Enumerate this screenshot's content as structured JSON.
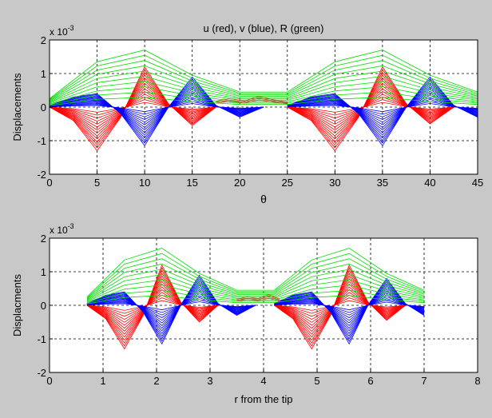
{
  "chart_data": [
    {
      "type": "line",
      "title": "u (red), v (blue), R (green)",
      "xlabel": "θ",
      "ylabel": "Displacements",
      "multiplier_label": "x 10",
      "multiplier_exp": "-3",
      "xlim": [
        0,
        45
      ],
      "ylim": [
        -2,
        2
      ],
      "xticks": [
        "0",
        "5",
        "10",
        "15",
        "20",
        "25",
        "30",
        "35",
        "40",
        "45"
      ],
      "yticks": [
        "-2",
        "-1",
        "0",
        "1",
        "2"
      ],
      "xtick_values": [
        0,
        5,
        10,
        15,
        20,
        25,
        30,
        35,
        40,
        45
      ],
      "ytick_values": [
        -2,
        -1,
        0,
        1,
        2
      ],
      "grid": true,
      "series": [
        {
          "color": "#ff0000",
          "x": [
            0,
            2.5,
            5,
            7.5,
            10,
            12.5,
            15,
            17.5
          ],
          "y": [
            0,
            -0.4,
            -1.3,
            -0.3,
            1.2,
            0.1,
            -0.55,
            0
          ],
          "layers": 14,
          "min_scale": 0.05
        },
        {
          "color": "#ff0000",
          "x": [
            25,
            27.5,
            30,
            32.5,
            35,
            37.5,
            40,
            42.5
          ],
          "y": [
            0,
            -0.4,
            -1.3,
            -0.3,
            1.2,
            0.1,
            -0.5,
            0
          ],
          "layers": 14,
          "min_scale": 0.05
        },
        {
          "color": "#0000ff",
          "x": [
            0,
            2.5,
            5,
            7.5,
            10,
            12.5,
            15,
            17.5,
            20,
            22.5
          ],
          "y": [
            0.05,
            0.3,
            0.4,
            -0.2,
            -1.15,
            0,
            0.9,
            0.05,
            -0.3,
            0
          ],
          "layers": 14,
          "min_scale": 0.05
        },
        {
          "color": "#0000ff",
          "x": [
            25,
            27.5,
            30,
            32.5,
            35,
            37.5,
            40,
            42.5,
            45
          ],
          "y": [
            0.05,
            0.3,
            0.4,
            -0.2,
            -1.15,
            0,
            0.9,
            0.05,
            -0.3
          ],
          "layers": 14,
          "min_scale": 0.05
        },
        {
          "color": "#00dd00",
          "x": [
            0,
            5,
            10,
            15,
            20,
            25,
            30,
            35,
            40,
            45
          ],
          "y": [
            0.25,
            1.35,
            1.7,
            0.95,
            0.45,
            0.45,
            1.35,
            1.7,
            0.95,
            0.45
          ],
          "layers": 10,
          "min_scale": 0.08
        },
        {
          "color": "#b05010",
          "x": [
            17.5,
            19,
            20.5,
            22,
            23.5,
            25
          ],
          "y": [
            0.18,
            0.25,
            0.18,
            0.32,
            0.22,
            0.15
          ],
          "layers": 3,
          "min_scale": 0.5
        }
      ]
    },
    {
      "type": "line",
      "title": "",
      "xlabel": "r from the tip",
      "ylabel": "Displacments",
      "multiplier_label": "x 10",
      "multiplier_exp": "-3",
      "xlim": [
        0,
        8
      ],
      "ylim": [
        -2,
        2
      ],
      "xticks": [
        "0",
        "1",
        "2",
        "3",
        "4",
        "5",
        "6",
        "7",
        "8"
      ],
      "yticks": [
        "-2",
        "-1",
        "0",
        "1",
        "2"
      ],
      "xtick_values": [
        0,
        1,
        2,
        3,
        4,
        5,
        6,
        7,
        8
      ],
      "ytick_values": [
        -2,
        -1,
        0,
        1,
        2
      ],
      "grid": true,
      "series": [
        {
          "color": "#ff0000",
          "x": [
            0.7,
            1.05,
            1.4,
            1.75,
            2.1,
            2.45,
            2.8,
            3.15
          ],
          "y": [
            0,
            -0.4,
            -1.3,
            -0.3,
            1.2,
            0.1,
            -0.5,
            0
          ],
          "layers": 14,
          "min_scale": 0.05
        },
        {
          "color": "#ff0000",
          "x": [
            4.2,
            4.55,
            4.9,
            5.25,
            5.6,
            5.95,
            6.3,
            6.65
          ],
          "y": [
            0,
            -0.4,
            -1.3,
            -0.3,
            1.2,
            0.1,
            -0.45,
            0
          ],
          "layers": 14,
          "min_scale": 0.05
        },
        {
          "color": "#0000ff",
          "x": [
            0.7,
            1.05,
            1.4,
            1.75,
            2.1,
            2.45,
            2.8,
            3.15,
            3.5,
            3.85
          ],
          "y": [
            0.05,
            0.3,
            0.4,
            -0.2,
            -1.15,
            0,
            0.9,
            0.05,
            -0.3,
            0
          ],
          "layers": 14,
          "min_scale": 0.05
        },
        {
          "color": "#0000ff",
          "x": [
            4.2,
            4.55,
            4.9,
            5.25,
            5.6,
            5.95,
            6.3,
            6.65,
            7
          ],
          "y": [
            0.05,
            0.3,
            0.4,
            -0.2,
            -1.15,
            0,
            0.8,
            0.05,
            -0.3
          ],
          "layers": 14,
          "min_scale": 0.05
        },
        {
          "color": "#00dd00",
          "x": [
            0.7,
            1.4,
            2.1,
            2.8,
            3.5,
            4.2,
            4.9,
            5.6,
            6.3,
            7
          ],
          "y": [
            0.25,
            1.35,
            1.7,
            0.95,
            0.45,
            0.45,
            1.35,
            1.7,
            0.95,
            0.45
          ],
          "layers": 10,
          "min_scale": 0.08
        },
        {
          "color": "#b05010",
          "x": [
            3.5,
            3.7,
            3.9,
            4.1,
            4.3
          ],
          "y": [
            0.18,
            0.25,
            0.2,
            0.32,
            0.18
          ],
          "layers": 3,
          "min_scale": 0.5
        }
      ]
    }
  ]
}
